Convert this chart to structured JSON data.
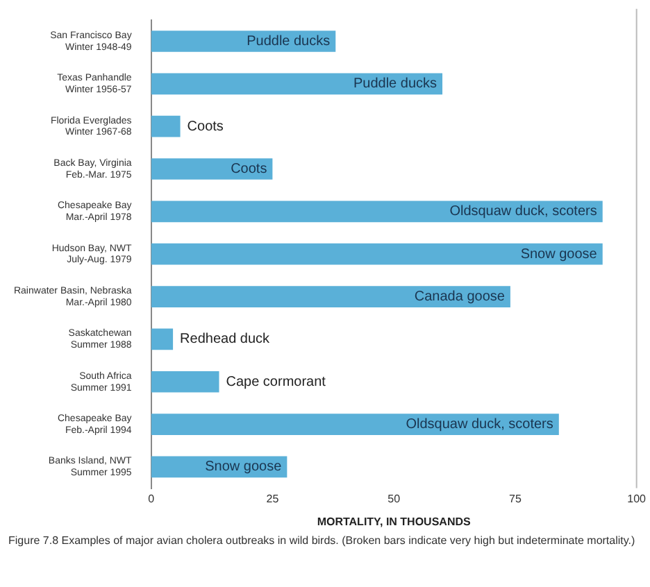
{
  "chart_data": {
    "type": "bar",
    "orientation": "horizontal",
    "xlabel": "MORTALITY, IN THOUSANDS",
    "categories": [
      "San Francisco Bay\nWinter 1948-49",
      "Texas Panhandle\nWinter 1956-57",
      "Florida Everglades\nWinter 1967-68",
      "Back Bay, Virginia\nFeb.-Mar. 1975",
      "Chesapeake Bay\nMar.-April 1978",
      "Hudson Bay, NWT\nJuly-Aug. 1979",
      "Rainwater Basin, Nebraska\nMar.-April 1980",
      "Saskatchewan\nSummer 1988",
      "South Africa\nSummer 1991",
      "Chesapeake Bay\nFeb.-April 1994",
      "Banks Island, NWT\nSummer 1995"
    ],
    "values": [
      38,
      60,
      6,
      25,
      93,
      93,
      74,
      4.5,
      14,
      84,
      28
    ],
    "value_labels": [
      "Puddle ducks",
      "Puddle ducks",
      "Coots",
      "Coots",
      "Oldsquaw duck, scoters",
      "Snow goose",
      "Canada goose",
      "Redhead duck",
      "Cape cormorant",
      "Oldsquaw duck, scoters",
      "Snow goose"
    ],
    "color": "#5ab0d8",
    "xlim": [
      0,
      100
    ],
    "xticks": [
      0,
      25,
      50,
      75,
      100
    ],
    "grid": false,
    "annotations": [
      "Figure 7.8 Examples of major avian cholera outbreaks in wild birds. (Broken bars indicate very high but indeterminate mortality.)"
    ]
  }
}
